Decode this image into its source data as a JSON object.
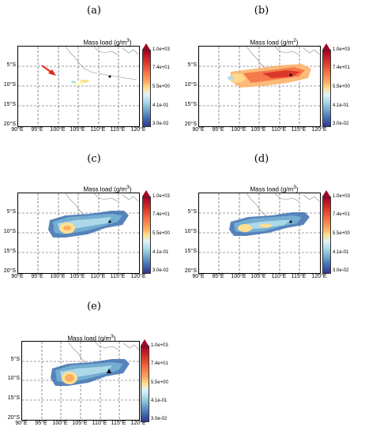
{
  "figure": {
    "panels": [
      {
        "label": "(a)",
        "title": "Mass load (g/m",
        "title_sup": "3",
        "title_end": ")"
      },
      {
        "label": "(b)",
        "title": "Mass load (g/m",
        "title_sup": "2",
        "title_end": ")"
      },
      {
        "label": "(c)",
        "title": "Mass load (g/m",
        "title_sup": "3",
        "title_end": ")"
      },
      {
        "label": "(d)",
        "title": "Mass load (g/m",
        "title_sup": "3",
        "title_end": ")"
      },
      {
        "label": "(e)",
        "title": "Mass load (g/m",
        "title_sup": "3",
        "title_end": ")"
      }
    ],
    "x_ticks": [
      "90°E",
      "95°E",
      "100°E",
      "105°E",
      "110°E",
      "115°E",
      "120°E"
    ],
    "y_ticks": [
      "5°S",
      "10°S",
      "15°S",
      "20°S"
    ],
    "colorbar_ticks": [
      "1.0e+03",
      "7.4e+01",
      "5.5e+00",
      "4.1e-01",
      "3.0e-02"
    ],
    "colors": {
      "high": "#a50026",
      "mid": "#fee090",
      "low": "#313695",
      "arrow": "#e0251b",
      "coast": "#8a8a8a",
      "grid": "#444444"
    }
  }
}
